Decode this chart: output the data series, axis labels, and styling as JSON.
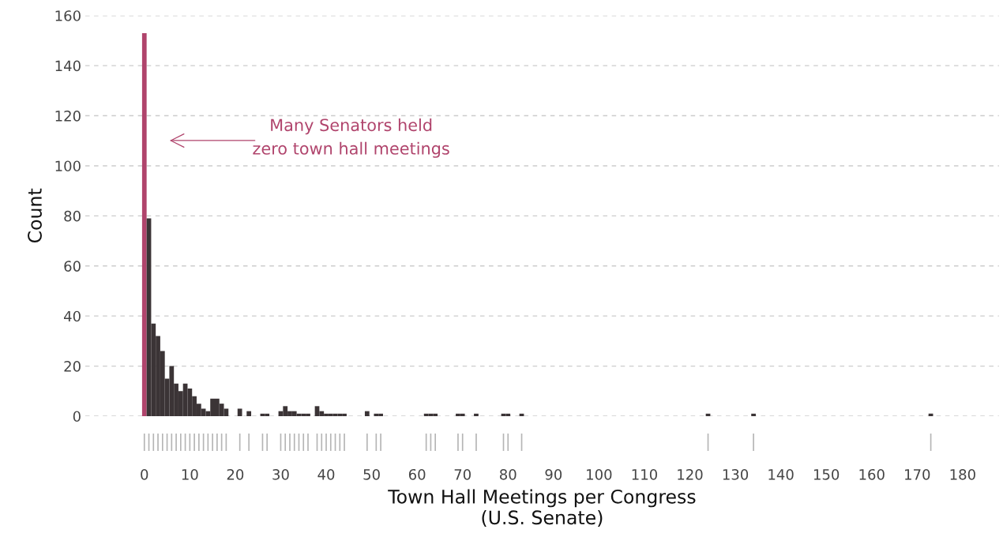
{
  "chart_data": {
    "type": "histogram",
    "xlabel": "Town Hall Meetings per Congress\n(U.S. Senate)",
    "ylabel": "Count",
    "bins": [
      -0.5,
      0.5,
      1.5,
      2.5,
      3.5,
      4.5,
      5.5,
      6.5,
      7.5,
      8.5,
      9.5,
      10.5,
      11.5,
      12.5,
      13.5,
      14.5,
      15.5,
      16.5,
      17.5,
      18.5,
      20.5,
      21.5,
      22.5,
      23.5,
      25.5,
      26.5,
      27.5,
      29.5,
      30.5,
      31.5,
      32.5,
      33.5,
      34.5,
      35.5,
      36.5,
      37.5,
      38.5,
      39.5,
      40.5,
      41.5,
      42.5,
      43.5,
      44.5,
      48.5,
      49.5,
      50.5,
      51.5,
      52.5,
      61.5,
      62.5,
      63.5,
      64.5,
      68.5,
      69.5,
      70.5,
      72.5,
      73.5,
      78.5,
      79.5,
      80.5,
      82.5,
      83.5,
      123.5,
      124.5,
      133.5,
      134.5,
      172.5,
      173.5
    ],
    "values": [
      153,
      79,
      37,
      32,
      26,
      15,
      20,
      13,
      10,
      13,
      11,
      8,
      5,
      3,
      2,
      7,
      7,
      5,
      3,
      0,
      3,
      0,
      2,
      0,
      1,
      1,
      0,
      2,
      4,
      2,
      2,
      1,
      1,
      1,
      0,
      4,
      2,
      1,
      1,
      1,
      1,
      1,
      0,
      2,
      0,
      1,
      1,
      0,
      1,
      1,
      1,
      0,
      1,
      1,
      0,
      1,
      0,
      1,
      1,
      0,
      1,
      0,
      1,
      0,
      1,
      0,
      1
    ],
    "colors": [
      "#b0446c",
      "#3b3436",
      "#3b3436",
      "#3b3436",
      "#3b3436",
      "#3b3436",
      "#3b3436",
      "#3b3436",
      "#3b3436",
      "#3b3436",
      "#3b3436",
      "#3b3436",
      "#3b3436",
      "#3b3436",
      "#3b3436",
      "#3b3436",
      "#3b3436",
      "#3b3436",
      "#3b3436",
      "#3b3436",
      "#3b3436",
      "#3b3436",
      "#3b3436",
      "#3b3436",
      "#3b3436",
      "#3b3436",
      "#3b3436",
      "#3b3436",
      "#3b3436",
      "#3b3436",
      "#3b3436",
      "#3b3436",
      "#3b3436",
      "#3b3436",
      "#3b3436",
      "#3b3436",
      "#3b3436",
      "#3b3436",
      "#3b3436",
      "#3b3436",
      "#3b3436",
      "#3b3436",
      "#3b3436",
      "#3b3436",
      "#3b3436",
      "#3b3436",
      "#3b3436",
      "#3b3436",
      "#3b3436",
      "#3b3436",
      "#3b3436",
      "#3b3436",
      "#3b3436",
      "#3b3436",
      "#3b3436",
      "#3b3436",
      "#3b3436",
      "#3b3436",
      "#3b3436",
      "#3b3436",
      "#3b3436",
      "#3b3436",
      "#3b3436",
      "#3b3436",
      "#3b3436",
      "#3b3436",
      "#3b3436"
    ],
    "xlim": [
      -13,
      188
    ],
    "xticks": [
      0,
      10,
      20,
      30,
      40,
      50,
      60,
      70,
      80,
      90,
      100,
      110,
      120,
      130,
      140,
      150,
      160,
      170,
      180
    ],
    "ylim": [
      0,
      160
    ],
    "yticks": [
      0,
      20,
      40,
      60,
      80,
      100,
      120,
      140,
      160
    ],
    "grid": "y",
    "annotations": [
      "Many Senators held\nzero town hall meetings"
    ]
  }
}
